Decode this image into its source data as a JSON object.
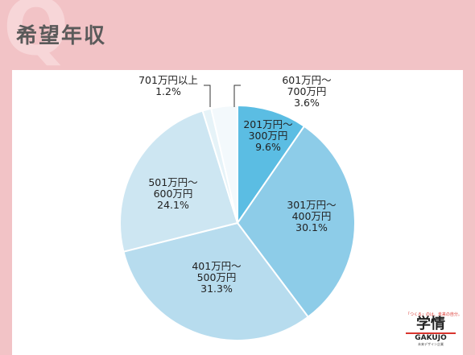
{
  "header": {
    "title": "希望年収",
    "mark": "Q"
  },
  "logo": {
    "tagline": "「つくる」のは、未来の自分。",
    "mark": "学情",
    "name": "GAKUJO",
    "sub": "未来デザイン企業"
  },
  "colors": {
    "background": "#f2c3c6",
    "panel": "#ffffff",
    "slices": [
      "#5bbde3",
      "#8dcce8",
      "#b7dcee",
      "#cde6f2",
      "#e6f3f8",
      "#f3f9fc"
    ]
  },
  "chart_data": {
    "type": "pie",
    "title": "",
    "start_angle_deg": 0,
    "direction": "clockwise",
    "slices": [
      {
        "name": "201万円〜300万円",
        "lines": [
          "201万円〜",
          "300万円",
          "9.6%"
        ],
        "value": 9.6
      },
      {
        "name": "301万円〜400万円",
        "lines": [
          "301万円〜",
          "400万円",
          "30.1%"
        ],
        "value": 30.1
      },
      {
        "name": "401万円〜500万円",
        "lines": [
          "401万円〜",
          "500万円",
          "31.3%"
        ],
        "value": 31.3
      },
      {
        "name": "501万円〜600万円",
        "lines": [
          "501万円〜",
          "600万円",
          "24.1%"
        ],
        "value": 24.1
      },
      {
        "name": "701万円以上",
        "lines": [
          "701万円以上",
          "1.2%"
        ],
        "value": 1.2
      },
      {
        "name": "601万円〜700万円",
        "lines": [
          "601万円〜",
          "700万円",
          "3.6%"
        ],
        "value": 3.6
      }
    ]
  }
}
